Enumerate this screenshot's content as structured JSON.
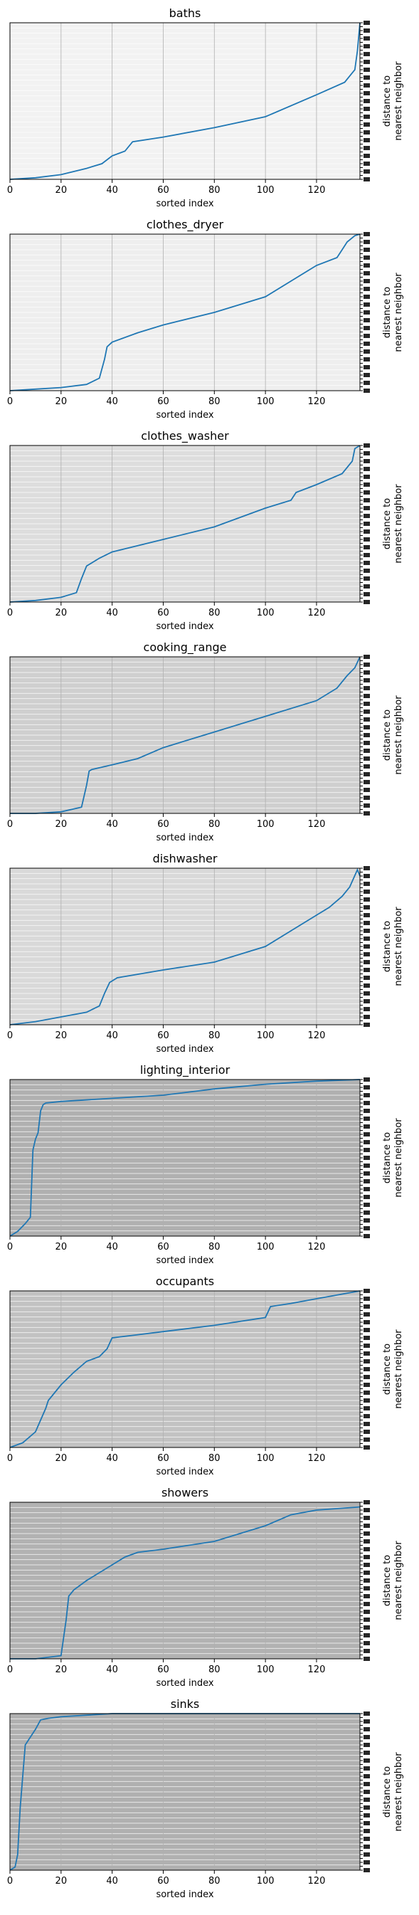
{
  "chart_data": [
    {
      "type": "line",
      "title": "baths",
      "xlabel": "sorted index",
      "ylabel": "distance to\nnearest neighbor",
      "xlim": [
        0,
        137
      ],
      "x_ticks": [
        0,
        20,
        40,
        60,
        80,
        100,
        120
      ],
      "ylim": [
        0,
        1
      ],
      "grid": true,
      "background": "#f2f2f2",
      "line_color": "#1f77b4",
      "series": [
        {
          "x": [
            0,
            10,
            20,
            30,
            36,
            40,
            45,
            48,
            60,
            80,
            100,
            120,
            131,
            133,
            135,
            136,
            137
          ],
          "values": [
            0.0,
            0.01,
            0.03,
            0.07,
            0.1,
            0.15,
            0.18,
            0.24,
            0.27,
            0.33,
            0.4,
            0.54,
            0.62,
            0.66,
            0.7,
            0.82,
            1.0
          ]
        }
      ]
    },
    {
      "type": "line",
      "title": "clothes_dryer",
      "xlabel": "sorted index",
      "ylabel": "distance to\nnearest neighbor",
      "xlim": [
        0,
        137
      ],
      "x_ticks": [
        0,
        20,
        40,
        60,
        80,
        100,
        120
      ],
      "ylim": [
        0,
        1
      ],
      "grid": true,
      "background": "#eeeeee",
      "line_color": "#1f77b4",
      "series": [
        {
          "x": [
            0,
            10,
            20,
            30,
            35,
            37,
            38,
            40,
            50,
            60,
            80,
            100,
            110,
            120,
            128,
            130,
            132,
            135,
            137
          ],
          "values": [
            0.0,
            0.01,
            0.02,
            0.04,
            0.08,
            0.2,
            0.28,
            0.31,
            0.37,
            0.42,
            0.5,
            0.6,
            0.7,
            0.8,
            0.85,
            0.9,
            0.95,
            0.99,
            1.0
          ]
        }
      ]
    },
    {
      "type": "line",
      "title": "clothes_washer",
      "xlabel": "sorted index",
      "ylabel": "distance to\nnearest neighbor",
      "xlim": [
        0,
        137
      ],
      "x_ticks": [
        0,
        20,
        40,
        60,
        80,
        100,
        120
      ],
      "ylim": [
        0,
        1
      ],
      "grid": true,
      "background": "#dddddd",
      "line_color": "#1f77b4",
      "series": [
        {
          "x": [
            0,
            10,
            20,
            26,
            28,
            30,
            35,
            40,
            60,
            80,
            100,
            110,
            112,
            120,
            130,
            134,
            135,
            137
          ],
          "values": [
            0.0,
            0.01,
            0.03,
            0.06,
            0.15,
            0.23,
            0.28,
            0.32,
            0.4,
            0.48,
            0.6,
            0.65,
            0.7,
            0.75,
            0.82,
            0.9,
            0.98,
            1.0
          ]
        }
      ]
    },
    {
      "type": "line",
      "title": "cooking_range",
      "xlabel": "sorted index",
      "ylabel": "distance to\nnearest neighbor",
      "xlim": [
        0,
        137
      ],
      "x_ticks": [
        0,
        20,
        40,
        60,
        80,
        100,
        120
      ],
      "ylim": [
        0,
        1
      ],
      "grid": true,
      "background": "#cfcfcf",
      "line_color": "#1f77b4",
      "series": [
        {
          "x": [
            0,
            10,
            20,
            28,
            30,
            31,
            32,
            40,
            50,
            60,
            80,
            100,
            120,
            128,
            132,
            135,
            137
          ],
          "values": [
            0.0,
            0.0,
            0.01,
            0.04,
            0.18,
            0.27,
            0.28,
            0.31,
            0.35,
            0.42,
            0.52,
            0.62,
            0.72,
            0.8,
            0.88,
            0.93,
            1.0
          ]
        }
      ]
    },
    {
      "type": "line",
      "title": "dishwasher",
      "xlabel": "sorted index",
      "ylabel": "distance to\nnearest neighbor",
      "xlim": [
        0,
        137
      ],
      "x_ticks": [
        0,
        20,
        40,
        60,
        80,
        100,
        120
      ],
      "ylim": [
        0,
        1
      ],
      "grid": true,
      "background": "#d9d9d9",
      "line_color": "#1f77b4",
      "series": [
        {
          "x": [
            0,
            10,
            20,
            30,
            35,
            37,
            39,
            42,
            60,
            80,
            100,
            110,
            120,
            125,
            130,
            133,
            136,
            137
          ],
          "values": [
            0.0,
            0.02,
            0.05,
            0.08,
            0.12,
            0.2,
            0.27,
            0.3,
            0.35,
            0.4,
            0.5,
            0.6,
            0.7,
            0.75,
            0.82,
            0.88,
            0.99,
            0.95
          ]
        }
      ]
    },
    {
      "type": "line",
      "title": "lighting_interior",
      "xlabel": "sorted index",
      "ylabel": "distance to\nnearest neighbor",
      "xlim": [
        0,
        137
      ],
      "x_ticks": [
        0,
        20,
        40,
        60,
        80,
        100,
        120
      ],
      "ylim": [
        0,
        1
      ],
      "grid": true,
      "background": "#b0b0b0",
      "line_color": "#1f77b4",
      "series": [
        {
          "x": [
            0,
            3,
            6,
            8,
            9,
            10,
            11,
            12,
            13,
            14,
            20,
            40,
            60,
            80,
            100,
            120,
            137
          ],
          "values": [
            0.0,
            0.03,
            0.08,
            0.12,
            0.55,
            0.62,
            0.66,
            0.8,
            0.84,
            0.85,
            0.86,
            0.88,
            0.9,
            0.94,
            0.97,
            0.99,
            1.0
          ]
        }
      ]
    },
    {
      "type": "line",
      "title": "occupants",
      "xlabel": "sorted index",
      "ylabel": "distance to\nnearest neighbor",
      "xlim": [
        0,
        137
      ],
      "x_ticks": [
        0,
        20,
        40,
        60,
        80,
        100,
        120
      ],
      "ylim": [
        0,
        1
      ],
      "grid": true,
      "background": "#c2c2c2",
      "line_color": "#1f77b4",
      "series": [
        {
          "x": [
            0,
            5,
            10,
            14,
            15,
            20,
            25,
            30,
            35,
            38,
            40,
            50,
            60,
            80,
            100,
            102,
            110,
            120,
            137
          ],
          "values": [
            0.0,
            0.03,
            0.1,
            0.25,
            0.3,
            0.4,
            0.48,
            0.55,
            0.58,
            0.63,
            0.7,
            0.72,
            0.74,
            0.78,
            0.83,
            0.9,
            0.92,
            0.95,
            1.0
          ]
        }
      ]
    },
    {
      "type": "line",
      "title": "showers",
      "xlabel": "sorted index",
      "ylabel": "distance to\nnearest neighbor",
      "xlim": [
        0,
        137
      ],
      "x_ticks": [
        0,
        20,
        40,
        60,
        80,
        100,
        120
      ],
      "ylim": [
        0,
        1
      ],
      "grid": true,
      "background": "#b2b2b2",
      "line_color": "#1f77b4",
      "series": [
        {
          "x": [
            0,
            10,
            20,
            22,
            23,
            25,
            30,
            40,
            45,
            50,
            60,
            80,
            100,
            110,
            120,
            137
          ],
          "values": [
            0.0,
            0.0,
            0.02,
            0.25,
            0.4,
            0.44,
            0.5,
            0.6,
            0.65,
            0.68,
            0.7,
            0.75,
            0.85,
            0.92,
            0.95,
            0.97
          ]
        }
      ]
    },
    {
      "type": "line",
      "title": "sinks",
      "xlabel": "sorted index",
      "ylabel": "distance to\nnearest neighbor",
      "xlim": [
        0,
        137
      ],
      "x_ticks": [
        0,
        20,
        40,
        60,
        80,
        100,
        120
      ],
      "ylim": [
        0,
        1
      ],
      "grid": true,
      "background": "#b0b0b0",
      "line_color": "#1f77b4",
      "series": [
        {
          "x": [
            0,
            2,
            3,
            4,
            6,
            8,
            10,
            12,
            15,
            20,
            30,
            40,
            60,
            80,
            100,
            137
          ],
          "values": [
            0.0,
            0.02,
            0.1,
            0.4,
            0.8,
            0.85,
            0.9,
            0.96,
            0.97,
            0.98,
            0.99,
            1.0,
            1.0,
            1.0,
            1.0,
            1.0
          ]
        }
      ]
    }
  ]
}
